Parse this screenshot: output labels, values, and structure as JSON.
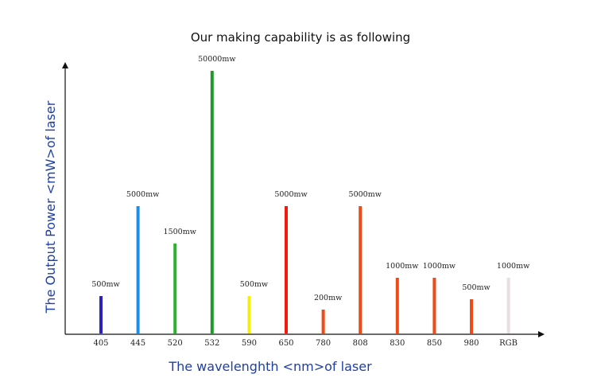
{
  "chart_data": {
    "type": "bar",
    "title": "Our making capability is as following",
    "xlabel": "The wavelenghth <nm>of laser",
    "ylabel": "The Output Power <mW>of laser",
    "categories": [
      "405",
      "445",
      "520",
      "532",
      "590",
      "650",
      "780",
      "808",
      "830",
      "850",
      "980",
      "RGB"
    ],
    "series": [
      {
        "values": [
          500,
          5000,
          1500,
          50000,
          500,
          5000,
          200,
          5000,
          1000,
          1000,
          500,
          1000
        ],
        "data_labels": [
          "500mw",
          "5000mw",
          "1500mw",
          "50000mw",
          "500mw",
          "5000mw",
          "200mw",
          "5000mw",
          "1000mw",
          "1000mw",
          "500mw",
          "1000mw"
        ],
        "colors": [
          "#2a24b8",
          "#1c8ee6",
          "#2fb02f",
          "#1f9a2a",
          "#f5ef10",
          "#f01c12",
          "#f04a18",
          "#f04a18",
          "#f04a18",
          "#f04a18",
          "#f04a18",
          "#e8dde0"
        ]
      }
    ],
    "y_scale": "not linear (bar heights are not proportional to the printed values)",
    "grid": false,
    "legend": "none",
    "axis_title_color": "#1f3fa6"
  }
}
